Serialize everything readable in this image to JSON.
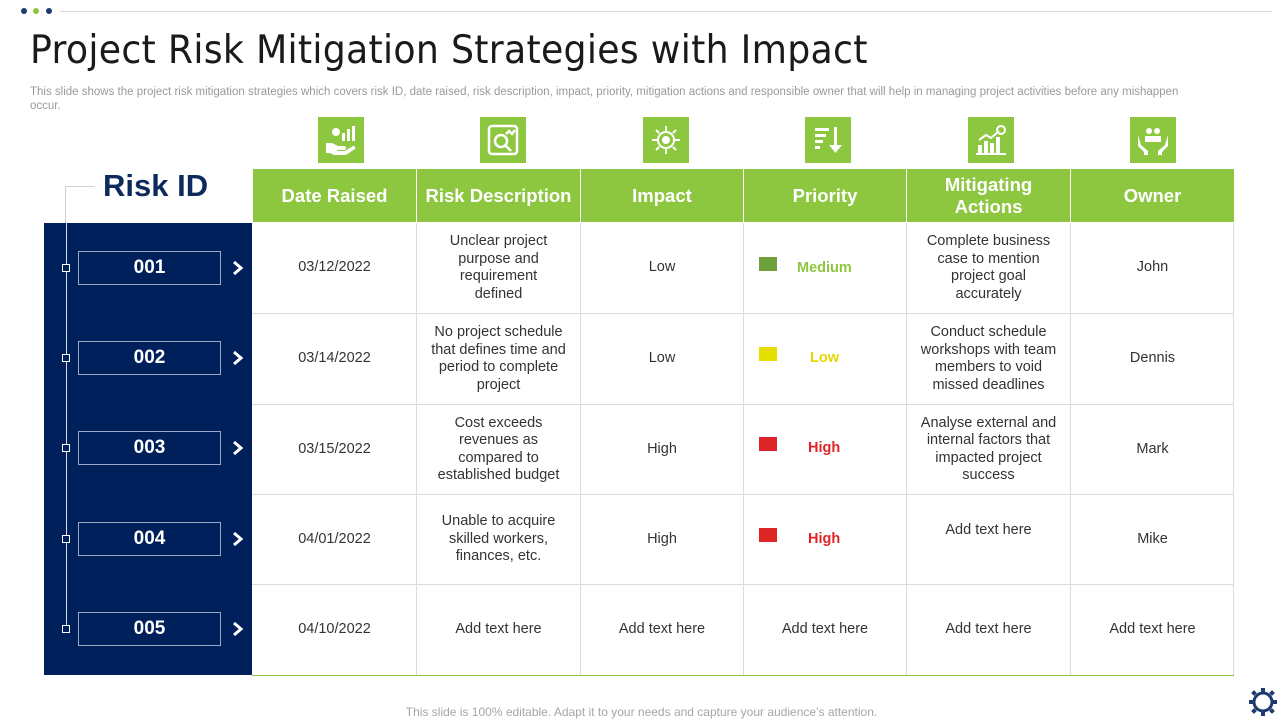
{
  "slide": {
    "title": "Project Risk Mitigation Strategies with Impact",
    "subtitle": "This slide shows the project risk mitigation strategies which covers risk ID, date raised, risk description, impact, priority, mitigation actions and responsible owner that will help in managing project activities before any mishappen occur.",
    "footer": "This slide is 100% editable. Adapt it to your needs and capture your audience’s attention."
  },
  "colors": {
    "green": "#8dc63f",
    "navy": "#00205b",
    "medium": "#6ca13b",
    "low": "#e6e000",
    "high": "#e02426",
    "dot_navy": "#1f3a6e",
    "dot_green": "#8dc63f"
  },
  "risk_id_label": "Risk ID",
  "headers": [
    "Date Raised",
    "Risk Description",
    "Impact",
    "Priority",
    "Mitigating Actions",
    "Owner"
  ],
  "header_icons": [
    "hand-chart-icon",
    "magnifier-chart-icon",
    "target-gear-icon",
    "descending-arrow-icon",
    "growth-chart-gear-icon",
    "hands-people-icon"
  ],
  "rows": [
    {
      "id": "001",
      "date": "03/12/2022",
      "description": "Unclear project purpose and requirement defined",
      "impact": "Low",
      "priority": "Medium",
      "priority_level": "medium",
      "action": "Complete business case to mention project goal accurately",
      "owner": "John"
    },
    {
      "id": "002",
      "date": "03/14/2022",
      "description": "No project schedule that defines time and period to complete project",
      "impact": "Low",
      "priority": "Low",
      "priority_level": "low",
      "action": "Conduct schedule workshops with team members to void missed deadlines",
      "owner": "Dennis"
    },
    {
      "id": "003",
      "date": "03/15/2022",
      "description": "Cost exceeds revenues as compared to established budget",
      "impact": "High",
      "priority": "High",
      "priority_level": "high",
      "action": "Analyse external and internal factors that impacted project success",
      "owner": "Mark"
    },
    {
      "id": "004",
      "date": "04/01/2022",
      "description": "Unable to acquire skilled workers, finances, etc.",
      "impact": "High",
      "priority": "High",
      "priority_level": "high",
      "action": "Add text here",
      "owner": "Mike"
    },
    {
      "id": "005",
      "date": "04/10/2022",
      "description": "Add text here",
      "impact": "Add text here",
      "priority": "Add text here",
      "priority_level": "none",
      "action": "Add text here",
      "owner": "Add text here"
    }
  ]
}
